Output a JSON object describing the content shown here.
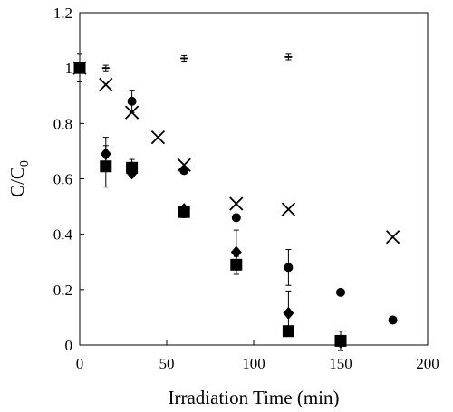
{
  "chart_data": {
    "type": "scatter",
    "title": "",
    "xlabel": "Irradiation Time (min)",
    "ylabel_main": "C/C",
    "ylabel_sub": "0",
    "xlim": [
      0,
      200
    ],
    "ylim": [
      0,
      1.2
    ],
    "x_ticks": [
      0,
      50,
      100,
      150,
      200
    ],
    "x_tick_labels": [
      "0",
      "50",
      "100",
      "150",
      "200"
    ],
    "y_ticks": [
      0,
      0.2,
      0.4,
      0.6,
      0.8,
      1.0,
      1.2
    ],
    "y_tick_labels": [
      "0",
      "0.2",
      "0.4",
      "0.6",
      "0.8",
      "1",
      "1.2"
    ],
    "grid": false,
    "legend": "none",
    "series": [
      {
        "marker": "dash",
        "x": [
          0,
          15,
          60,
          120
        ],
        "y": [
          1.0,
          1.0,
          1.035,
          1.04
        ],
        "err": [
          0.01,
          0.01,
          0.01,
          0.01
        ]
      },
      {
        "marker": "cross",
        "x": [
          0,
          15,
          30,
          45,
          60,
          90,
          120,
          180
        ],
        "y": [
          1.0,
          0.94,
          0.84,
          0.75,
          0.65,
          0.51,
          0.49,
          0.39
        ],
        "err": [
          0,
          0,
          0,
          0,
          0,
          0,
          0,
          0
        ]
      },
      {
        "marker": "circle",
        "x": [
          0,
          30,
          60,
          90,
          120,
          150,
          180
        ],
        "y": [
          1.0,
          0.88,
          0.63,
          0.46,
          0.28,
          0.19,
          0.09
        ],
        "err": [
          0,
          0.04,
          0,
          0.01,
          0.065,
          0,
          0
        ]
      },
      {
        "marker": "diamond",
        "x": [
          0,
          15,
          30,
          60,
          90,
          120,
          150
        ],
        "y": [
          1.0,
          0.69,
          0.62,
          0.49,
          0.335,
          0.115,
          0.01
        ],
        "err": [
          0,
          0.06,
          0,
          0.01,
          0.08,
          0.08,
          0
        ]
      },
      {
        "marker": "square",
        "x": [
          0,
          15,
          30,
          60,
          90,
          120,
          150
        ],
        "y": [
          1.0,
          0.645,
          0.64,
          0.48,
          0.29,
          0.05,
          0.015
        ],
        "err": [
          0.05,
          0.075,
          0.03,
          0.02,
          0.03,
          0.01,
          0.035
        ]
      }
    ]
  }
}
